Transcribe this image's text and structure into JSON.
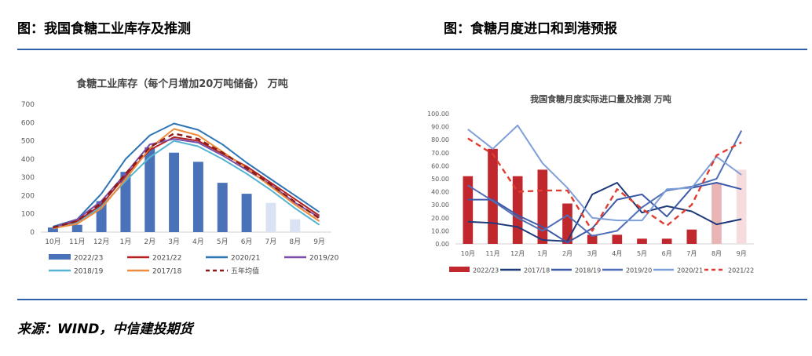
{
  "header": {
    "left_title": "图：我国食糖工业库存及推测",
    "right_title": "图：食糖月度进口和到港预报"
  },
  "footer": {
    "source": "来源：WIND，中信建投期货"
  },
  "chart_data": [
    {
      "type": "bar+line",
      "title": "食糖工业库存（每个月增加20万吨储备） 万吨",
      "categories": [
        "10月",
        "11月",
        "12月",
        "1月",
        "2月",
        "3月",
        "4月",
        "5月",
        "6月",
        "7月",
        "8月",
        "9月"
      ],
      "ylim": [
        0,
        700
      ],
      "yticks": [
        0,
        100,
        200,
        300,
        400,
        500,
        600,
        700
      ],
      "grid": false,
      "legend_position": "bottom",
      "bar_colors": [
        "#4a72b8",
        "#4a72b8",
        "#4a72b8",
        "#4a72b8",
        "#4a72b8",
        "#4a72b8",
        "#4a72b8",
        "#4a72b8",
        "#4a72b8",
        "#dae3f3",
        "#dae3f3",
        "#dae3f3"
      ],
      "bars": {
        "name": "2022/23",
        "color": "#4a72b8",
        "values": [
          25,
          40,
          170,
          330,
          465,
          435,
          385,
          270,
          210,
          160,
          70,
          null
        ]
      },
      "series": [
        {
          "name": "2021/22",
          "color": "#b22222",
          "dash": false,
          "values": [
            25,
            60,
            150,
            310,
            450,
            520,
            500,
            430,
            360,
            270,
            180,
            90
          ]
        },
        {
          "name": "2020/21",
          "color": "#2e75b6",
          "dash": false,
          "values": [
            30,
            70,
            210,
            400,
            530,
            595,
            560,
            480,
            380,
            290,
            200,
            110
          ]
        },
        {
          "name": "2019/20",
          "color": "#7b4ea8",
          "dash": false,
          "values": [
            25,
            70,
            170,
            320,
            480,
            510,
            490,
            420,
            340,
            260,
            160,
            80
          ]
        },
        {
          "name": "2018/19",
          "color": "#56b4d3",
          "dash": false,
          "values": [
            20,
            50,
            140,
            280,
            410,
            500,
            470,
            400,
            320,
            230,
            130,
            40
          ]
        },
        {
          "name": "2017/18",
          "color": "#ed8c3a",
          "dash": false,
          "values": [
            20,
            45,
            130,
            290,
            460,
            565,
            530,
            440,
            350,
            250,
            150,
            60
          ]
        },
        {
          "name": "五年均值",
          "color": "#8b1a1a",
          "dash": true,
          "values": [
            25,
            60,
            160,
            320,
            465,
            540,
            510,
            435,
            350,
            260,
            165,
            75
          ]
        }
      ]
    },
    {
      "type": "bar+line",
      "title": "我国食糖月度实际进口量及推测 万吨",
      "categories": [
        "10月",
        "11月",
        "12月",
        "1月",
        "2月",
        "3月",
        "4月",
        "5月",
        "6月",
        "7月",
        "8月",
        "9月"
      ],
      "ylim": [
        0,
        100
      ],
      "yticks": [
        "0.00",
        "10.00",
        "20.00",
        "30.00",
        "40.00",
        "50.00",
        "60.00",
        "70.00",
        "80.00",
        "90.00",
        "100.00"
      ],
      "grid": false,
      "legend_position": "bottom",
      "bar_colors": [
        "#c0282d",
        "#c0282d",
        "#c0282d",
        "#c0282d",
        "#c0282d",
        "#c0282d",
        "#c0282d",
        "#c0282d",
        "#c0282d",
        "#c0282d",
        "#e8b4b4",
        "#f6dcdc"
      ],
      "bars": {
        "name": "2022/23",
        "color": "#c0282d",
        "values": [
          52,
          73,
          52,
          57,
          31,
          7,
          7,
          4,
          4,
          11,
          47,
          57
        ]
      },
      "series": [
        {
          "name": "2017/18",
          "color": "#1f3a7a",
          "dash": false,
          "values": [
            17,
            16,
            13,
            3,
            2,
            38,
            47,
            24,
            29,
            25,
            15,
            19
          ]
        },
        {
          "name": "2018/19",
          "color": "#3c5aa8",
          "dash": false,
          "values": [
            34,
            34,
            22,
            13,
            1,
            12,
            34,
            38,
            21,
            43,
            47,
            42
          ]
        },
        {
          "name": "2019/20",
          "color": "#4f6fb8",
          "dash": false,
          "values": [
            45,
            33,
            20,
            10,
            22,
            6,
            10,
            28,
            41,
            44,
            50,
            87
          ]
        },
        {
          "name": "2020/21",
          "color": "#7f9fd8",
          "dash": false,
          "values": [
            88,
            73,
            91,
            62,
            43,
            20,
            18,
            18,
            42,
            43,
            67,
            53
          ]
        },
        {
          "name": "2021/22",
          "color": "#e03c31",
          "dash": true,
          "values": [
            81,
            69,
            40,
            41,
            41,
            10,
            42,
            27,
            14,
            30,
            68,
            78
          ]
        }
      ]
    }
  ]
}
